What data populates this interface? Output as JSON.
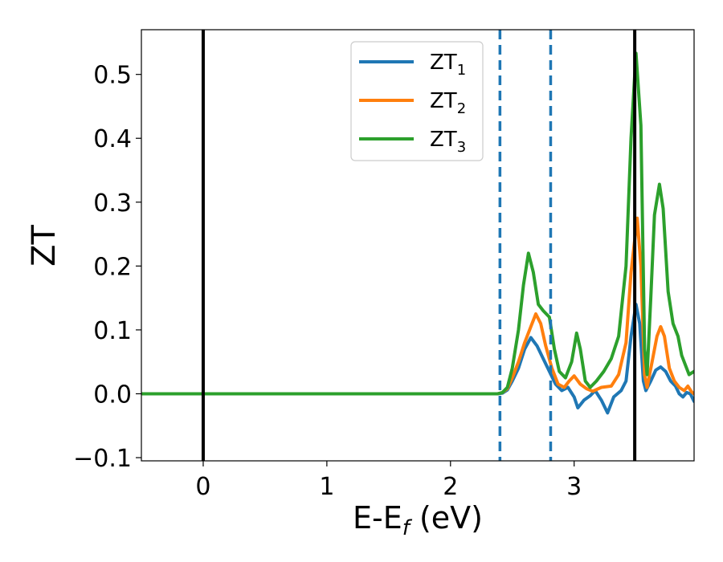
{
  "chart_data": {
    "type": "line",
    "xlabel": {
      "main": "E-E",
      "sub": "f",
      "unit": " (eV)"
    },
    "ylabel": "ZT",
    "xlim": [
      -0.5,
      3.97
    ],
    "ylim": [
      -0.105,
      0.57
    ],
    "xticks": [
      0,
      1,
      2,
      3
    ],
    "xtick_labels": [
      "0",
      "1",
      "2",
      "3"
    ],
    "yticks": [
      -0.1,
      0.0,
      0.1,
      0.2,
      0.3,
      0.4,
      0.5
    ],
    "ytick_labels": [
      "−0.1",
      "0.0",
      "0.1",
      "0.2",
      "0.3",
      "0.4",
      "0.5"
    ],
    "grid": false,
    "legend": {
      "position": "top-center"
    },
    "vlines": [
      {
        "x": 0.0,
        "style": "solid",
        "color": "#000000"
      },
      {
        "x": 3.49,
        "style": "solid",
        "color": "#000000"
      },
      {
        "x": 2.4,
        "style": "dashed",
        "color": "#1f77b4"
      },
      {
        "x": 2.81,
        "style": "dashed",
        "color": "#1f77b4"
      }
    ],
    "hline": {
      "y": 0.0
    },
    "series": [
      {
        "name": "ZT",
        "subscript": "1",
        "color": "#1f77b4",
        "points": [
          [
            -0.5,
            0
          ],
          [
            2.38,
            0
          ],
          [
            2.42,
            0.001
          ],
          [
            2.46,
            0.006
          ],
          [
            2.5,
            0.02
          ],
          [
            2.55,
            0.04
          ],
          [
            2.6,
            0.07
          ],
          [
            2.65,
            0.088
          ],
          [
            2.7,
            0.075
          ],
          [
            2.75,
            0.055
          ],
          [
            2.8,
            0.035
          ],
          [
            2.85,
            0.015
          ],
          [
            2.9,
            0.005
          ],
          [
            2.95,
            0.01
          ],
          [
            3.0,
            -0.005
          ],
          [
            3.03,
            -0.022
          ],
          [
            3.08,
            -0.01
          ],
          [
            3.13,
            -0.003
          ],
          [
            3.17,
            0.005
          ],
          [
            3.22,
            -0.01
          ],
          [
            3.27,
            -0.03
          ],
          [
            3.32,
            -0.005
          ],
          [
            3.38,
            0.005
          ],
          [
            3.42,
            0.02
          ],
          [
            3.46,
            0.09
          ],
          [
            3.5,
            0.14
          ],
          [
            3.53,
            0.11
          ],
          [
            3.56,
            0.02
          ],
          [
            3.58,
            0.005
          ],
          [
            3.62,
            0.02
          ],
          [
            3.66,
            0.037
          ],
          [
            3.7,
            0.042
          ],
          [
            3.74,
            0.035
          ],
          [
            3.78,
            0.02
          ],
          [
            3.82,
            0.012
          ],
          [
            3.85,
            0.0
          ],
          [
            3.88,
            -0.005
          ],
          [
            3.91,
            0.002
          ],
          [
            3.94,
            0.0
          ],
          [
            3.97,
            -0.012
          ]
        ]
      },
      {
        "name": "ZT",
        "subscript": "2",
        "color": "#ff7f0e",
        "points": [
          [
            -0.5,
            0
          ],
          [
            2.38,
            0
          ],
          [
            2.42,
            0.002
          ],
          [
            2.46,
            0.008
          ],
          [
            2.5,
            0.025
          ],
          [
            2.55,
            0.05
          ],
          [
            2.6,
            0.08
          ],
          [
            2.65,
            0.105
          ],
          [
            2.69,
            0.125
          ],
          [
            2.73,
            0.11
          ],
          [
            2.77,
            0.075
          ],
          [
            2.82,
            0.04
          ],
          [
            2.87,
            0.015
          ],
          [
            2.92,
            0.01
          ],
          [
            2.96,
            0.02
          ],
          [
            3.0,
            0.028
          ],
          [
            3.05,
            0.015
          ],
          [
            3.1,
            0.008
          ],
          [
            3.15,
            0.004
          ],
          [
            3.22,
            0.01
          ],
          [
            3.3,
            0.012
          ],
          [
            3.36,
            0.03
          ],
          [
            3.42,
            0.08
          ],
          [
            3.46,
            0.19
          ],
          [
            3.51,
            0.275
          ],
          [
            3.54,
            0.2
          ],
          [
            3.57,
            0.03
          ],
          [
            3.59,
            0.01
          ],
          [
            3.63,
            0.05
          ],
          [
            3.67,
            0.09
          ],
          [
            3.7,
            0.105
          ],
          [
            3.73,
            0.09
          ],
          [
            3.77,
            0.04
          ],
          [
            3.81,
            0.02
          ],
          [
            3.85,
            0.01
          ],
          [
            3.89,
            0.005
          ],
          [
            3.92,
            0.012
          ],
          [
            3.95,
            0.003
          ],
          [
            3.97,
            0.0
          ]
        ]
      },
      {
        "name": "ZT",
        "subscript": "3",
        "color": "#2ca02c",
        "points": [
          [
            -0.5,
            0
          ],
          [
            2.38,
            0
          ],
          [
            2.42,
            0.002
          ],
          [
            2.46,
            0.01
          ],
          [
            2.5,
            0.04
          ],
          [
            2.55,
            0.1
          ],
          [
            2.59,
            0.17
          ],
          [
            2.63,
            0.22
          ],
          [
            2.67,
            0.19
          ],
          [
            2.71,
            0.14
          ],
          [
            2.75,
            0.13
          ],
          [
            2.8,
            0.12
          ],
          [
            2.84,
            0.07
          ],
          [
            2.88,
            0.035
          ],
          [
            2.93,
            0.025
          ],
          [
            2.98,
            0.05
          ],
          [
            3.02,
            0.095
          ],
          [
            3.05,
            0.07
          ],
          [
            3.09,
            0.02
          ],
          [
            3.13,
            0.01
          ],
          [
            3.18,
            0.02
          ],
          [
            3.24,
            0.035
          ],
          [
            3.3,
            0.055
          ],
          [
            3.36,
            0.09
          ],
          [
            3.42,
            0.2
          ],
          [
            3.46,
            0.4
          ],
          [
            3.5,
            0.533
          ],
          [
            3.54,
            0.42
          ],
          [
            3.57,
            0.07
          ],
          [
            3.59,
            0.03
          ],
          [
            3.62,
            0.15
          ],
          [
            3.65,
            0.28
          ],
          [
            3.69,
            0.328
          ],
          [
            3.72,
            0.29
          ],
          [
            3.76,
            0.16
          ],
          [
            3.8,
            0.11
          ],
          [
            3.84,
            0.09
          ],
          [
            3.87,
            0.06
          ],
          [
            3.9,
            0.045
          ],
          [
            3.93,
            0.03
          ],
          [
            3.97,
            0.035
          ]
        ]
      }
    ]
  }
}
